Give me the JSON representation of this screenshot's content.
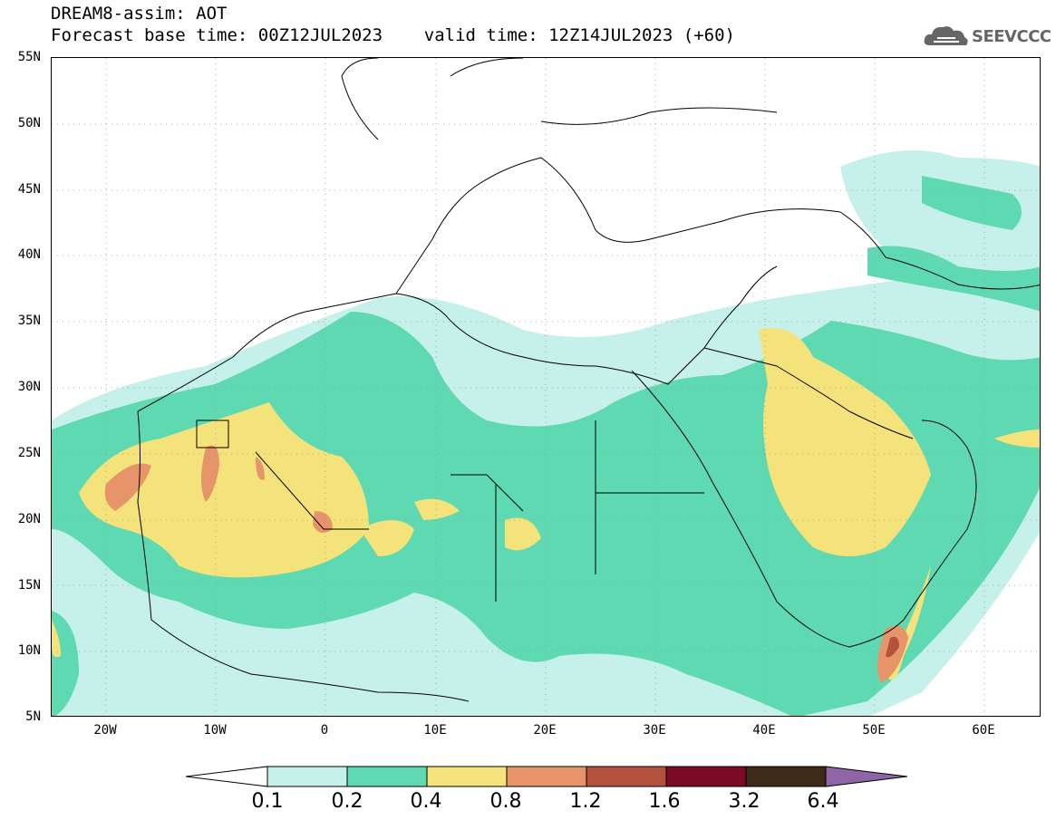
{
  "title": {
    "line1": "DREAM8-assim: AOT",
    "line2": "Forecast base time: 00Z12JUL2023    valid time: 12Z14JUL2023 (+60)"
  },
  "logo": {
    "text": "SEEVCCC",
    "icon": "cloud-logo-icon"
  },
  "map": {
    "lat_labels": [
      "55N",
      "50N",
      "45N",
      "40N",
      "35N",
      "30N",
      "25N",
      "20N",
      "15N",
      "10N",
      "5N"
    ],
    "lon_labels": [
      "20W",
      "10W",
      "0",
      "10E",
      "20E",
      "30E",
      "40E",
      "50E",
      "60E"
    ],
    "lat_range": [
      5,
      55
    ],
    "lon_range": [
      -25,
      65
    ],
    "grid": "dotted"
  },
  "colorbar": {
    "labels": [
      "0.1",
      "0.2",
      "0.4",
      "0.8",
      "1.2",
      "1.6",
      "3.2",
      "6.4"
    ],
    "colors": [
      "#ffffff",
      "#c6f0ea",
      "#5ed9b1",
      "#f4e27a",
      "#e8946a",
      "#b4513c",
      "#7d0a24",
      "#3d2a17",
      "#8e65a6"
    ]
  }
}
